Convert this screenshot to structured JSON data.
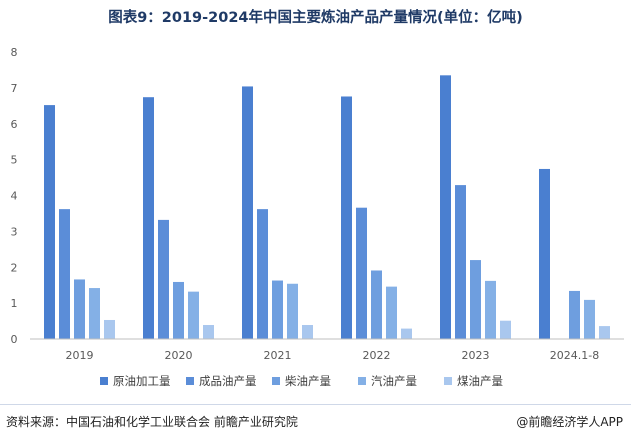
{
  "title": "图表9：2019-2024年中国主要炼油产品产量情况(单位：亿吨)",
  "source": "资料来源：中国石油和化学工业联合会 前瞻产业研究院",
  "brand": "@前瞻经济学人APP",
  "colors": {
    "axis": "#bfbfbf",
    "tick_text": "#595959"
  },
  "chart_data": {
    "type": "bar",
    "title": "图表9：2019-2024年中国主要炼油产品产量情况(单位：亿吨)",
    "xlabel": "",
    "ylabel": "",
    "ylim": [
      0,
      8
    ],
    "yticks": [
      "0",
      "1",
      "2",
      "3",
      "4",
      "5",
      "6",
      "7",
      "8"
    ],
    "grid": false,
    "legend_position": "bottom",
    "categories": [
      "2019",
      "2020",
      "2021",
      "2022",
      "2023",
      "2024.1-8"
    ],
    "series": [
      {
        "name": "原油加工量",
        "color": "#4a7fd0",
        "values": [
          6.52,
          6.74,
          7.04,
          6.76,
          7.35,
          4.74
        ]
      },
      {
        "name": "成品油产量",
        "color": "#5b8dd8",
        "values": [
          3.62,
          3.32,
          3.62,
          3.66,
          4.29,
          null
        ]
      },
      {
        "name": "柴油产量",
        "color": "#6e9edf",
        "values": [
          1.66,
          1.59,
          1.63,
          1.91,
          2.2,
          1.34
        ]
      },
      {
        "name": "汽油产量",
        "color": "#84b0e6",
        "values": [
          1.42,
          1.32,
          1.54,
          1.46,
          1.62,
          1.09
        ]
      },
      {
        "name": "煤油产量",
        "color": "#a9c7ee",
        "values": [
          0.53,
          0.39,
          0.39,
          0.29,
          0.51,
          0.36
        ]
      }
    ]
  }
}
